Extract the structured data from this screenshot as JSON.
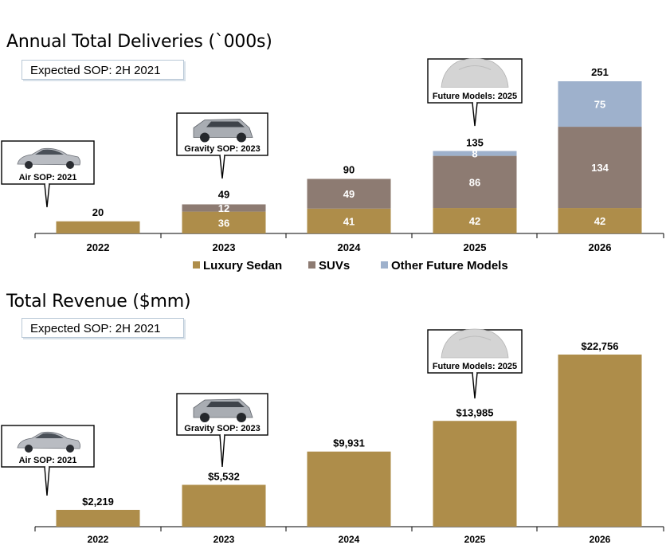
{
  "colors": {
    "luxury": "#ae8d4a",
    "suv": "#8d7b72",
    "other": "#9eb1cc"
  },
  "callouts": {
    "air": "Air SOP: 2021",
    "gravity": "Gravity SOP: 2023",
    "future": "Future Models: 2025"
  },
  "chart_data": [
    {
      "type": "bar",
      "stacked": true,
      "title": "Annual Total Deliveries (`000s)",
      "badge": "Expected SOP:  2H 2021",
      "categories": [
        "2022",
        "2023",
        "2024",
        "2025",
        "2026"
      ],
      "series": [
        {
          "name": "Luxury Sedan",
          "values": [
            20,
            36,
            41,
            42,
            42
          ]
        },
        {
          "name": "SUVs",
          "values": [
            0,
            12,
            49,
            86,
            134
          ]
        },
        {
          "name": "Other Future Models",
          "values": [
            0,
            0,
            0,
            8,
            75
          ]
        }
      ],
      "totals": [
        20,
        49,
        90,
        135,
        251
      ],
      "legend_position": "bottom"
    },
    {
      "type": "bar",
      "title": "Total Revenue ($mm)",
      "badge": "Expected SOP:  2H 2021",
      "categories": [
        "2022",
        "2023",
        "2024",
        "2025",
        "2026"
      ],
      "values": [
        2219,
        5532,
        9931,
        13985,
        22756
      ],
      "value_labels": [
        "$2,219",
        "$5,532",
        "$9,931",
        "$13,985",
        "$22,756"
      ]
    }
  ]
}
